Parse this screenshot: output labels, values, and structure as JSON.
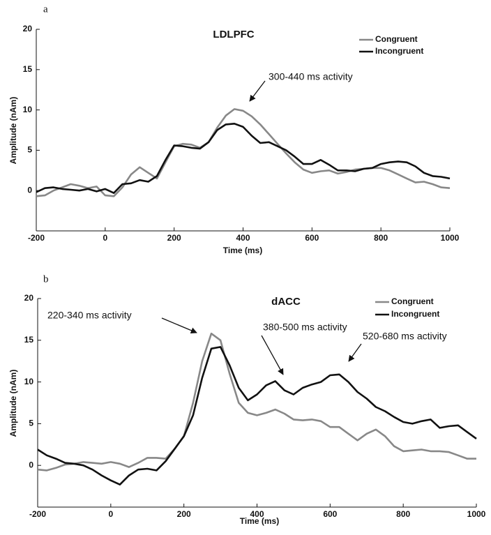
{
  "chart_data": [
    {
      "type": "line",
      "panel_label": "a",
      "title": "LDLPFC",
      "x_label": "Time (ms)",
      "y_label": "Amplitude (nAm)",
      "annotations": [
        "300-440 ms activity"
      ],
      "x": [
        -200,
        -175,
        -150,
        -125,
        -100,
        -75,
        -50,
        -25,
        0,
        25,
        50,
        75,
        100,
        125,
        150,
        175,
        200,
        225,
        250,
        275,
        300,
        325,
        350,
        375,
        400,
        425,
        450,
        475,
        500,
        525,
        550,
        575,
        600,
        625,
        650,
        675,
        700,
        725,
        750,
        775,
        800,
        825,
        850,
        875,
        900,
        925,
        950,
        975,
        1000
      ],
      "series": [
        {
          "name": "Congruent",
          "color": "#888888",
          "values": [
            -0.7,
            -0.6,
            0,
            0.4,
            0.8,
            0.6,
            0.3,
            0.5,
            -0.6,
            -0.7,
            0.4,
            2.0,
            2.9,
            2.2,
            1.5,
            3.5,
            5.5,
            5.8,
            5.7,
            5.3,
            6.0,
            7.8,
            9.3,
            10.1,
            9.9,
            9.2,
            8.2,
            7.0,
            5.8,
            4.6,
            3.5,
            2.6,
            2.2,
            2.4,
            2.5,
            2.1,
            2.3,
            2.6,
            2.7,
            2.8,
            2.8,
            2.5,
            2.0,
            1.5,
            1.0,
            1.1,
            0.8,
            0.4,
            0.3
          ]
        },
        {
          "name": "Incongruent",
          "color": "#111111",
          "values": [
            -0.2,
            0.3,
            0.4,
            0.2,
            0.1,
            0.0,
            0.2,
            -0.1,
            0.2,
            -0.3,
            0.8,
            0.9,
            1.3,
            1.1,
            1.8,
            3.8,
            5.6,
            5.5,
            5.3,
            5.2,
            6.0,
            7.5,
            8.2,
            8.3,
            7.9,
            6.8,
            5.9,
            6.0,
            5.5,
            5.0,
            4.2,
            3.3,
            3.3,
            3.8,
            3.2,
            2.5,
            2.5,
            2.4,
            2.7,
            2.8,
            3.3,
            3.5,
            3.6,
            3.5,
            3.0,
            2.2,
            1.8,
            1.7,
            1.5
          ]
        }
      ],
      "xlim": [
        -200,
        1000
      ],
      "xticks": [
        -200,
        0,
        200,
        400,
        600,
        800,
        1000
      ],
      "ylim": [
        -5,
        20
      ],
      "yticks": [
        0,
        5,
        10,
        15,
        20
      ],
      "grid": false,
      "legend": "upper right"
    },
    {
      "type": "line",
      "panel_label": "b",
      "title": "dACC",
      "x_label": "Time (ms)",
      "y_label": "Amplitude (nAm)",
      "annotations": [
        "220-340 ms activity",
        "380-500 ms activity",
        "520-680 ms activity"
      ],
      "x": [
        -200,
        -175,
        -150,
        -125,
        -100,
        -75,
        -50,
        -25,
        0,
        25,
        50,
        75,
        100,
        125,
        150,
        175,
        200,
        225,
        250,
        275,
        300,
        325,
        350,
        375,
        400,
        425,
        450,
        475,
        500,
        525,
        550,
        575,
        600,
        625,
        650,
        675,
        700,
        725,
        750,
        775,
        800,
        825,
        850,
        875,
        900,
        925,
        950,
        975,
        1000
      ],
      "series": [
        {
          "name": "Congruent",
          "color": "#888888",
          "values": [
            -0.5,
            -0.6,
            -0.3,
            0.1,
            0.2,
            0.4,
            0.3,
            0.2,
            0.4,
            0.2,
            -0.2,
            0.3,
            0.9,
            0.9,
            0.8,
            2.0,
            3.5,
            7.5,
            12.5,
            15.8,
            15.0,
            11.0,
            7.5,
            6.3,
            6.0,
            6.3,
            6.7,
            6.2,
            5.5,
            5.4,
            5.5,
            5.3,
            4.6,
            4.6,
            3.8,
            3.0,
            3.8,
            4.3,
            3.5,
            2.3,
            1.7,
            1.8,
            1.9,
            1.7,
            1.7,
            1.6,
            1.2,
            0.8,
            0.8
          ]
        },
        {
          "name": "Incongruent",
          "color": "#111111",
          "values": [
            1.9,
            1.2,
            0.8,
            0.3,
            0.2,
            0.0,
            -0.5,
            -1.2,
            -1.8,
            -2.3,
            -1.2,
            -0.5,
            -0.4,
            -0.6,
            0.5,
            2.0,
            3.5,
            6.0,
            10.5,
            14.0,
            14.2,
            12.0,
            9.3,
            7.8,
            8.5,
            9.6,
            10.1,
            9.0,
            8.5,
            9.3,
            9.7,
            10.0,
            10.8,
            10.9,
            10.0,
            8.8,
            8.0,
            7.0,
            6.5,
            5.8,
            5.2,
            5.0,
            5.3,
            5.5,
            4.5,
            4.7,
            4.8,
            4.0,
            3.2
          ]
        }
      ],
      "xlim": [
        -200,
        1000
      ],
      "xticks": [
        -200,
        0,
        200,
        400,
        600,
        800,
        1000
      ],
      "ylim": [
        -5,
        20
      ],
      "yticks": [
        0,
        5,
        10,
        15,
        20
      ],
      "grid": false,
      "legend": "upper right"
    }
  ]
}
